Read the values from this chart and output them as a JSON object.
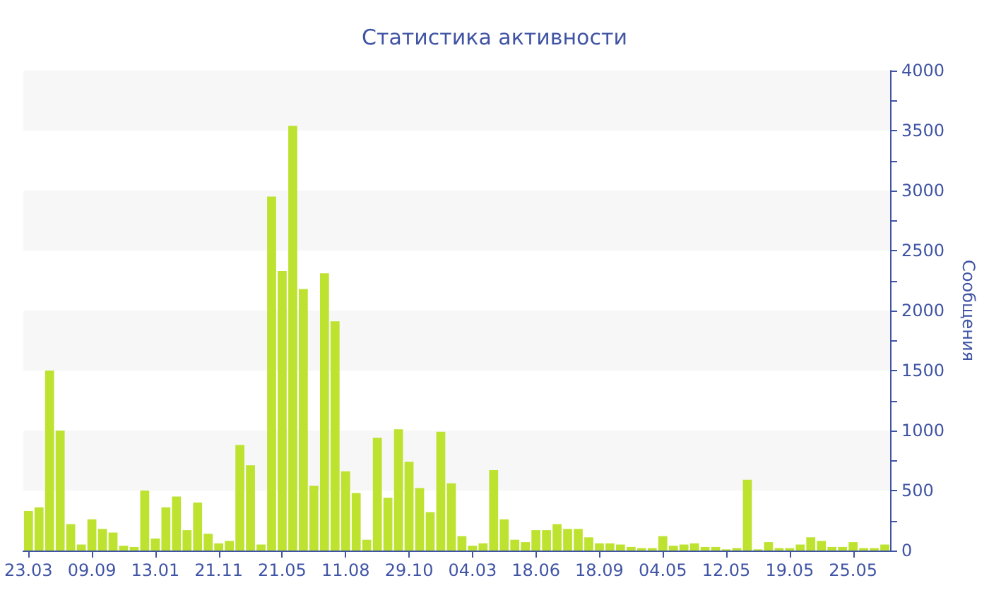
{
  "chart_data": {
    "type": "bar",
    "title": "Статистика активности",
    "ylabel": "Сообщения",
    "color": "#bde22f",
    "categories": [
      "23.03",
      null,
      null,
      null,
      null,
      null,
      "09.09",
      null,
      null,
      null,
      null,
      null,
      "13.01",
      null,
      null,
      null,
      null,
      null,
      "21.11",
      null,
      null,
      null,
      null,
      null,
      "21.05",
      null,
      null,
      null,
      null,
      null,
      "11.08",
      null,
      null,
      null,
      null,
      null,
      "29.10",
      null,
      null,
      null,
      null,
      null,
      "04.03",
      null,
      null,
      null,
      null,
      null,
      "18.06",
      null,
      null,
      null,
      null,
      null,
      "18.09",
      null,
      null,
      null,
      null,
      null,
      "04.05",
      null,
      null,
      null,
      null,
      null,
      "12.05",
      null,
      null,
      null,
      null,
      null,
      "19.05",
      null,
      null,
      null,
      null,
      null,
      "25.05",
      null,
      null,
      null
    ],
    "values": [
      330,
      360,
      1500,
      1000,
      220,
      50,
      260,
      180,
      150,
      40,
      30,
      500,
      100,
      360,
      450,
      170,
      400,
      140,
      60,
      80,
      880,
      710,
      50,
      2950,
      2330,
      3540,
      2180,
      540,
      2310,
      1910,
      660,
      480,
      90,
      940,
      440,
      1010,
      740,
      520,
      320,
      990,
      560,
      120,
      40,
      60,
      670,
      260,
      90,
      70,
      170,
      170,
      220,
      180,
      180,
      110,
      60,
      60,
      50,
      30,
      20,
      20,
      120,
      40,
      50,
      60,
      30,
      30,
      10,
      20,
      590,
      10,
      70,
      20,
      20,
      50,
      110,
      80,
      30,
      30,
      70,
      20,
      20,
      50
    ],
    "ylim": [
      0,
      4000
    ],
    "yticks": [
      0,
      {
        "value": 250,
        "label": null
      },
      500,
      {
        "value": 750,
        "label": null
      },
      1000,
      {
        "value": 1250,
        "label": null
      },
      1500,
      {
        "value": 1750,
        "label": null
      },
      2000,
      {
        "value": 2250,
        "label": null
      },
      2500,
      {
        "value": 2750,
        "label": null
      },
      3000,
      {
        "value": 3250,
        "label": null
      },
      3500,
      {
        "value": 3750,
        "label": null
      },
      4000
    ],
    "bands": [
      {
        "axis": "y",
        "from": 500,
        "to": 1000,
        "color": "#f7f7f7"
      },
      {
        "axis": "y",
        "from": 1500,
        "to": 2000,
        "color": "#f7f7f7"
      },
      {
        "axis": "y",
        "from": 2500,
        "to": 3000,
        "color": "#f7f7f7"
      },
      {
        "axis": "y",
        "from": 3500,
        "to": 4000,
        "color": "#f7f7f7"
      }
    ]
  }
}
